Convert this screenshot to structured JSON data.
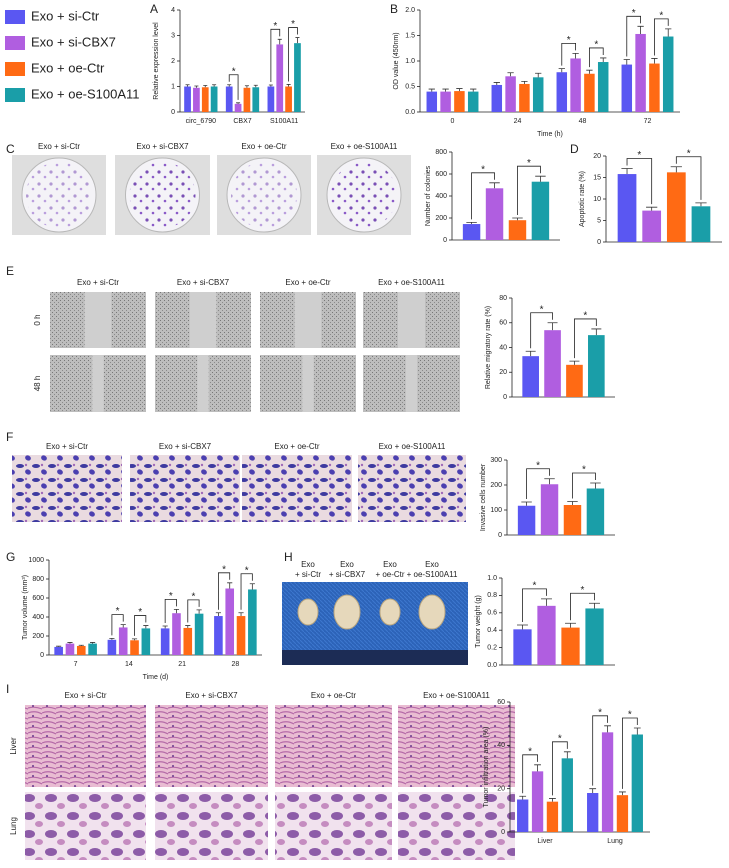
{
  "image_panels": {
    "colonies": {
      "columns": [
        "Exo + si-Ctr",
        "Exo + si-CBX7",
        "Exo + oe-Ctr",
        "Exo + oe-S100A11"
      ]
    },
    "migration": {
      "columns": [
        "Exo + si-Ctr",
        "Exo + si-CBX7",
        "Exo + oe-Ctr",
        "Exo + oe-S100A11"
      ],
      "rows": [
        "0 h",
        "48 h"
      ]
    },
    "invasion": {
      "columns": [
        "Exo + si-Ctr",
        "Exo + si-CBX7",
        "Exo + oe-Ctr",
        "Exo + oe-S100A11"
      ]
    },
    "tumors": {
      "columns": [
        [
          "Exo",
          "+ si-Ctr"
        ],
        [
          "Exo",
          "+ si-CBX7"
        ],
        [
          "Exo",
          "+ oe-Ctr"
        ],
        [
          "Exo",
          "+ oe-S100A11"
        ]
      ]
    },
    "histology": {
      "columns": [
        "Exo + si-Ctr",
        "Exo + si-CBX7",
        "Exo + oe-Ctr",
        "Exo + oe-S100A11"
      ],
      "rows": [
        "Liver",
        "Lung"
      ]
    }
  },
  "chart_data": [
    {
      "type": "bar",
      "panel": "A",
      "ylabel": "Relative expression level",
      "categories": [
        "circ_6790",
        "CBX7",
        "S100A11"
      ],
      "series": [
        {
          "name": "Exo + si-Ctr",
          "color": "#5a57f2",
          "values": [
            1.0,
            1.0,
            1.0
          ],
          "errors": [
            0.07,
            0.07,
            0.06
          ]
        },
        {
          "name": "Exo + si-CBX7",
          "color": "#b05ee0",
          "values": [
            0.95,
            0.32,
            2.65
          ],
          "errors": [
            0.07,
            0.04,
            0.2
          ]
        },
        {
          "name": "Exo + oe-Ctr",
          "color": "#ff6a14",
          "values": [
            0.97,
            0.95,
            1.0
          ],
          "errors": [
            0.07,
            0.08,
            0.08
          ]
        },
        {
          "name": "Exo + oe-S100A11",
          "color": "#1a9ea8",
          "values": [
            1.0,
            0.97,
            2.7
          ],
          "errors": [
            0.07,
            0.08,
            0.22
          ]
        }
      ],
      "ylim": [
        0,
        4
      ],
      "yticks": [
        0,
        1,
        2,
        3,
        4
      ],
      "brackets": [
        {
          "label": "*",
          "category": 1,
          "from": 0,
          "to": 1
        },
        {
          "label": "*",
          "category": 2,
          "from": 0,
          "to": 1
        },
        {
          "label": "*",
          "category": 2,
          "from": 2,
          "to": 3
        }
      ]
    },
    {
      "type": "bar",
      "panel": "B",
      "ylabel": "OD value (450nm)",
      "xlabel": "Time (h)",
      "categories": [
        "0",
        "24",
        "48",
        "72"
      ],
      "series": [
        {
          "color": "#5a57f2",
          "values": [
            0.4,
            0.53,
            0.78,
            0.93
          ],
          "errors": [
            0.05,
            0.05,
            0.07,
            0.1
          ]
        },
        {
          "color": "#b05ee0",
          "values": [
            0.4,
            0.7,
            1.05,
            1.53
          ],
          "errors": [
            0.05,
            0.07,
            0.1,
            0.15
          ]
        },
        {
          "color": "#ff6a14",
          "values": [
            0.41,
            0.55,
            0.75,
            0.95
          ],
          "errors": [
            0.05,
            0.05,
            0.07,
            0.1
          ]
        },
        {
          "color": "#1a9ea8",
          "values": [
            0.4,
            0.68,
            0.98,
            1.48
          ],
          "errors": [
            0.05,
            0.08,
            0.08,
            0.15
          ]
        }
      ],
      "ylim": [
        0,
        2
      ],
      "yticks": [
        {
          "value": 0,
          "label": "0.0"
        },
        0.5,
        {
          "value": 1,
          "label": "1.0"
        },
        1.5,
        {
          "value": 2,
          "label": "2.0"
        }
      ],
      "brackets": [
        {
          "label": "*",
          "category": 2,
          "from": 0,
          "to": 1
        },
        {
          "label": "*",
          "category": 2,
          "from": 2,
          "to": 3
        },
        {
          "label": "*",
          "category": 3,
          "from": 0,
          "to": 1
        },
        {
          "label": "*",
          "category": 3,
          "from": 2,
          "to": 3
        }
      ]
    },
    {
      "type": "bar",
      "panel": "C",
      "ylabel": "Number of colonies",
      "categories": [
        null
      ],
      "series": [
        {
          "color": "#5a57f2",
          "values": [
            145
          ],
          "errors": [
            15
          ]
        },
        {
          "color": "#b05ee0",
          "values": [
            470
          ],
          "errors": [
            50
          ]
        },
        {
          "color": "#ff6a14",
          "values": [
            180
          ],
          "errors": [
            20
          ]
        },
        {
          "color": "#1a9ea8",
          "values": [
            530
          ],
          "errors": [
            50
          ]
        }
      ],
      "ylim": [
        0,
        800
      ],
      "yticks": [
        0,
        200,
        400,
        600,
        800
      ],
      "brackets": [
        {
          "label": "*",
          "category": 0,
          "from": 0,
          "to": 1
        },
        {
          "label": "*",
          "category": 0,
          "from": 2,
          "to": 3
        }
      ]
    },
    {
      "type": "bar",
      "panel": "D",
      "ylabel": "Apoptotic rate (%)",
      "categories": [
        null
      ],
      "series": [
        {
          "color": "#5a57f2",
          "values": [
            15.8
          ],
          "errors": [
            1.3
          ]
        },
        {
          "color": "#b05ee0",
          "values": [
            7.3
          ],
          "errors": [
            0.8
          ]
        },
        {
          "color": "#ff6a14",
          "values": [
            16.2
          ],
          "errors": [
            1.3
          ]
        },
        {
          "color": "#1a9ea8",
          "values": [
            8.3
          ],
          "errors": [
            0.8
          ]
        }
      ],
      "ylim": [
        0,
        20
      ],
      "yticks": [
        0,
        5,
        10,
        15,
        20
      ],
      "brackets": [
        {
          "label": "*",
          "category": 0,
          "from": 0,
          "to": 1
        },
        {
          "label": "*",
          "category": 0,
          "from": 2,
          "to": 3
        }
      ]
    },
    {
      "type": "bar",
      "panel": "E",
      "ylabel": "Relative migratory rate (%)",
      "categories": [
        null
      ],
      "series": [
        {
          "color": "#5a57f2",
          "values": [
            33
          ],
          "errors": [
            4
          ]
        },
        {
          "color": "#b05ee0",
          "values": [
            54
          ],
          "errors": [
            6
          ]
        },
        {
          "color": "#ff6a14",
          "values": [
            26
          ],
          "errors": [
            3
          ]
        },
        {
          "color": "#1a9ea8",
          "values": [
            50
          ],
          "errors": [
            5
          ]
        }
      ],
      "ylim": [
        0,
        80
      ],
      "yticks": [
        0,
        20,
        40,
        60,
        80
      ],
      "brackets": [
        {
          "label": "*",
          "category": 0,
          "from": 0,
          "to": 1
        },
        {
          "label": "*",
          "category": 0,
          "from": 2,
          "to": 3
        }
      ]
    },
    {
      "type": "bar",
      "panel": "F",
      "ylabel": "Invasive cells number",
      "categories": [
        null
      ],
      "series": [
        {
          "color": "#5a57f2",
          "values": [
            117
          ],
          "errors": [
            15
          ]
        },
        {
          "color": "#b05ee0",
          "values": [
            203
          ],
          "errors": [
            22
          ]
        },
        {
          "color": "#ff6a14",
          "values": [
            120
          ],
          "errors": [
            14
          ]
        },
        {
          "color": "#1a9ea8",
          "values": [
            186
          ],
          "errors": [
            22
          ]
        }
      ],
      "ylim": [
        0,
        300
      ],
      "yticks": [
        0,
        100,
        200,
        300
      ],
      "brackets": [
        {
          "label": "*",
          "category": 0,
          "from": 0,
          "to": 1
        },
        {
          "label": "*",
          "category": 0,
          "from": 2,
          "to": 3
        }
      ]
    },
    {
      "type": "bar",
      "panel": "G",
      "ylabel": "Tumor volume (mm³)",
      "xlabel": "Time (d)",
      "categories": [
        "7",
        "14",
        "21",
        "28"
      ],
      "series": [
        {
          "color": "#5a57f2",
          "values": [
            85,
            160,
            280,
            410
          ],
          "errors": [
            8,
            15,
            25,
            35
          ]
        },
        {
          "color": "#b05ee0",
          "values": [
            120,
            290,
            440,
            700
          ],
          "errors": [
            12,
            30,
            40,
            60
          ]
        },
        {
          "color": "#ff6a14",
          "values": [
            95,
            155,
            285,
            410
          ],
          "errors": [
            8,
            15,
            25,
            35
          ]
        },
        {
          "color": "#1a9ea8",
          "values": [
            120,
            280,
            435,
            690
          ],
          "errors": [
            12,
            30,
            40,
            60
          ]
        }
      ],
      "ylim": [
        0,
        1000
      ],
      "yticks": [
        0,
        200,
        400,
        600,
        800,
        1000
      ],
      "brackets": [
        {
          "label": "*",
          "category": 1,
          "from": 0,
          "to": 1
        },
        {
          "label": "*",
          "category": 1,
          "from": 2,
          "to": 3
        },
        {
          "label": "*",
          "category": 2,
          "from": 0,
          "to": 1
        },
        {
          "label": "*",
          "category": 2,
          "from": 2,
          "to": 3
        },
        {
          "label": "*",
          "category": 3,
          "from": 0,
          "to": 1
        },
        {
          "label": "*",
          "category": 3,
          "from": 2,
          "to": 3
        }
      ]
    },
    {
      "type": "bar",
      "panel": "H",
      "ylabel": "Tumor weight (g)",
      "categories": [
        null
      ],
      "series": [
        {
          "color": "#5a57f2",
          "values": [
            0.41
          ],
          "errors": [
            0.05
          ]
        },
        {
          "color": "#b05ee0",
          "values": [
            0.68
          ],
          "errors": [
            0.08
          ]
        },
        {
          "color": "#ff6a14",
          "values": [
            0.43
          ],
          "errors": [
            0.05
          ]
        },
        {
          "color": "#1a9ea8",
          "values": [
            0.65
          ],
          "errors": [
            0.06
          ]
        }
      ],
      "ylim": [
        0,
        1
      ],
      "yticks": [
        {
          "value": 0,
          "label": "0.0"
        },
        0.2,
        0.4,
        0.6,
        0.8,
        {
          "value": 1,
          "label": "1.0"
        }
      ],
      "brackets": [
        {
          "label": "*",
          "category": 0,
          "from": 0,
          "to": 1
        },
        {
          "label": "*",
          "category": 0,
          "from": 2,
          "to": 3
        }
      ]
    },
    {
      "type": "bar",
      "panel": "I",
      "ylabel": "Tumor infiltration area (%)",
      "categories": [
        "Liver",
        "Lung"
      ],
      "series": [
        {
          "color": "#5a57f2",
          "values": [
            15,
            18
          ],
          "errors": [
            1.5,
            2
          ]
        },
        {
          "color": "#b05ee0",
          "values": [
            28,
            46
          ],
          "errors": [
            3,
            3
          ]
        },
        {
          "color": "#ff6a14",
          "values": [
            14,
            17
          ],
          "errors": [
            1.5,
            1.5
          ]
        },
        {
          "color": "#1a9ea8",
          "values": [
            34,
            45
          ],
          "errors": [
            3,
            3
          ]
        }
      ],
      "ylim": [
        0,
        60
      ],
      "yticks": [
        0,
        20,
        40,
        60
      ],
      "brackets": [
        {
          "label": "*",
          "category": 0,
          "from": 0,
          "to": 1
        },
        {
          "label": "*",
          "category": 0,
          "from": 2,
          "to": 3
        },
        {
          "label": "*",
          "category": 1,
          "from": 0,
          "to": 1
        },
        {
          "label": "*",
          "category": 1,
          "from": 2,
          "to": 3
        }
      ]
    }
  ]
}
